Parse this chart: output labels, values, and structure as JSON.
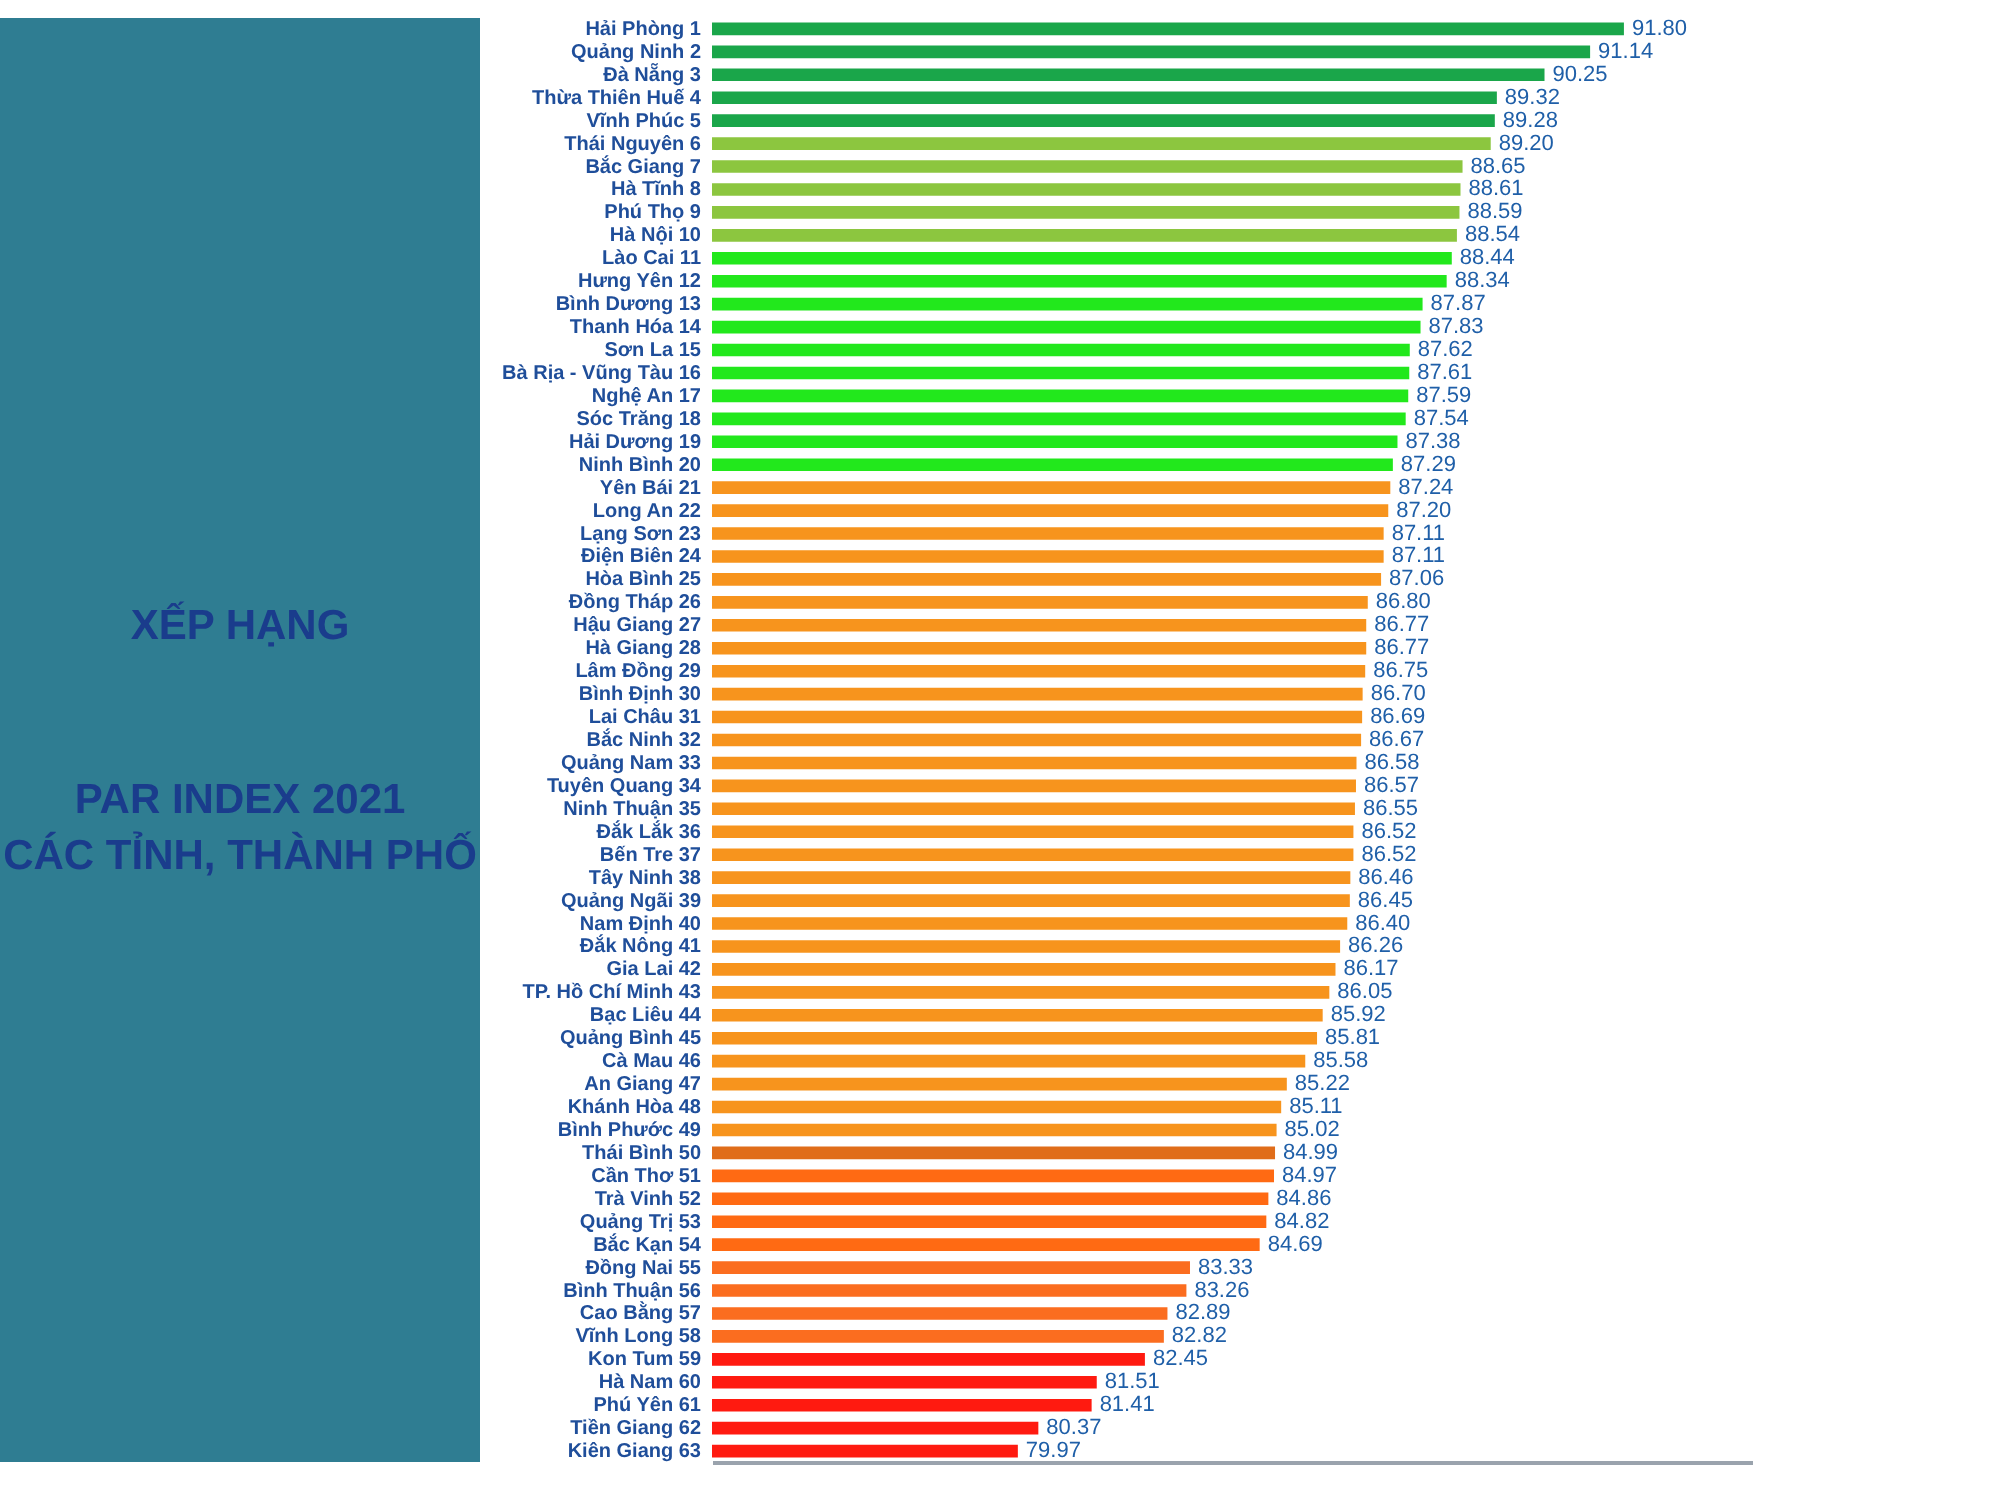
{
  "chart_data": {
    "type": "bar",
    "orientation": "horizontal",
    "title": "XẾP HẠNG",
    "subtitle": "PAR INDEX 2021\nCÁC TỈNH, THÀNH PHỐ",
    "categories": [
      "Hải Phòng 1",
      "Quảng Ninh 2",
      "Đà Nẵng 3",
      "Thừa Thiên Huế 4",
      "Vĩnh Phúc 5",
      "Thái Nguyên 6",
      "Bắc Giang 7",
      "Hà Tĩnh 8",
      "Phú Thọ 9",
      "Hà Nội 10",
      "Lào Cai 11",
      "Hưng Yên 12",
      "Bình Dương 13",
      "Thanh Hóa 14",
      "Sơn La 15",
      "Bà Rịa - Vũng Tàu 16",
      "Nghệ An 17",
      "Sóc Trăng 18",
      "Hải Dương 19",
      "Ninh Bình 20",
      "Yên Bái 21",
      "Long An 22",
      "Lạng Sơn 23",
      "Điện Biên 24",
      "Hòa Bình 25",
      "Đồng Tháp 26",
      "Hậu Giang 27",
      "Hà Giang 28",
      "Lâm Đồng 29",
      "Bình Định 30",
      "Lai Châu 31",
      "Bắc Ninh 32",
      "Quảng Nam 33",
      "Tuyên Quang 34",
      "Ninh Thuận 35",
      "Đắk Lắk 36",
      "Bến Tre 37",
      "Tây Ninh 38",
      "Quảng Ngãi 39",
      "Nam Định 40",
      "Đắk Nông 41",
      "Gia Lai 42",
      "TP. Hồ Chí Minh 43",
      "Bạc Liêu 44",
      "Quảng Bình 45",
      "Cà Mau 46",
      "An Giang 47",
      "Khánh Hòa 48",
      "Bình Phước 49",
      "Thái Bình 50",
      "Cần Thơ 51",
      "Trà Vinh 52",
      "Quảng Trị 53",
      "Bắc Kạn 54",
      "Đồng Nai 55",
      "Bình Thuận 56",
      "Cao Bằng 57",
      "Vĩnh Long 58",
      "Kon Tum 59",
      "Hà Nam 60",
      "Phú Yên 61",
      "Tiền Giang 62",
      "Kiên Giang 63"
    ],
    "values": [
      91.8,
      91.14,
      90.25,
      89.32,
      89.28,
      89.2,
      88.65,
      88.61,
      88.59,
      88.54,
      88.44,
      88.34,
      87.87,
      87.83,
      87.62,
      87.61,
      87.59,
      87.54,
      87.38,
      87.29,
      87.24,
      87.2,
      87.11,
      87.11,
      87.06,
      86.8,
      86.77,
      86.77,
      86.75,
      86.7,
      86.69,
      86.67,
      86.58,
      86.57,
      86.55,
      86.52,
      86.52,
      86.46,
      86.45,
      86.4,
      86.26,
      86.17,
      86.05,
      85.92,
      85.81,
      85.58,
      85.22,
      85.11,
      85.02,
      84.99,
      84.97,
      84.86,
      84.82,
      84.69,
      83.33,
      83.26,
      82.89,
      82.82,
      82.45,
      81.51,
      81.41,
      80.37,
      79.97
    ],
    "colors": [
      "#1aa64a",
      "#1aa64a",
      "#1aa64a",
      "#1aa64a",
      "#1aa64a",
      "#8cc63f",
      "#8cc63f",
      "#8cc63f",
      "#8cc63f",
      "#8cc63f",
      "#22e81c",
      "#22e81c",
      "#22e81c",
      "#22e81c",
      "#22e81c",
      "#22e81c",
      "#22e81c",
      "#22e81c",
      "#22e81c",
      "#22e81c",
      "#f7941d",
      "#f7941d",
      "#f7941d",
      "#f7941d",
      "#f7941d",
      "#f7941d",
      "#f7941d",
      "#f7941d",
      "#f7941d",
      "#f7941d",
      "#f7941d",
      "#f7941d",
      "#f7941d",
      "#f7941d",
      "#f7941d",
      "#f7941d",
      "#f7941d",
      "#f7941d",
      "#f7941d",
      "#f7941d",
      "#f7941d",
      "#f7941d",
      "#f7941d",
      "#f7941d",
      "#f7941d",
      "#f7941d",
      "#f7941d",
      "#f7941d",
      "#f7941d",
      "#e06d1a",
      "#ff6a13",
      "#ff6a13",
      "#ff6a13",
      "#ff6a13",
      "#fb6d1f",
      "#fb6d1f",
      "#fb6d1f",
      "#fb6d1f",
      "#ff1a10",
      "#ff1a10",
      "#ff1a10",
      "#ff1a10",
      "#ff1a10"
    ],
    "value_labels": [
      "91.80",
      "91.14",
      "90.25",
      "89.32",
      "89.28",
      "89.20",
      "88.65",
      "88.61",
      "88.59",
      "88.54",
      "88.44",
      "88.34",
      "87.87",
      "87.83",
      "87.62",
      "87.61",
      "87.59",
      "87.54",
      "87.38",
      "87.29",
      "87.24",
      "87.20",
      "87.11",
      "87.11",
      "87.06",
      "86.80",
      "86.77",
      "86.77",
      "86.75",
      "86.70",
      "86.69",
      "86.67",
      "86.58",
      "86.57",
      "86.55",
      "86.52",
      "86.52",
      "86.46",
      "86.45",
      "86.40",
      "86.26",
      "86.17",
      "86.05",
      "85.92",
      "85.81",
      "85.58",
      "85.22",
      "85.11",
      "85.02",
      "84.99",
      "84.97",
      "84.86",
      "84.82",
      "84.69",
      "83.33",
      "83.26",
      "82.89",
      "82.82",
      "82.45",
      "81.51",
      "81.41",
      "80.37",
      "79.97"
    ],
    "xlim": [
      74,
      94.3
    ],
    "tick_labels": "y",
    "grid": false,
    "legend": false
  }
}
